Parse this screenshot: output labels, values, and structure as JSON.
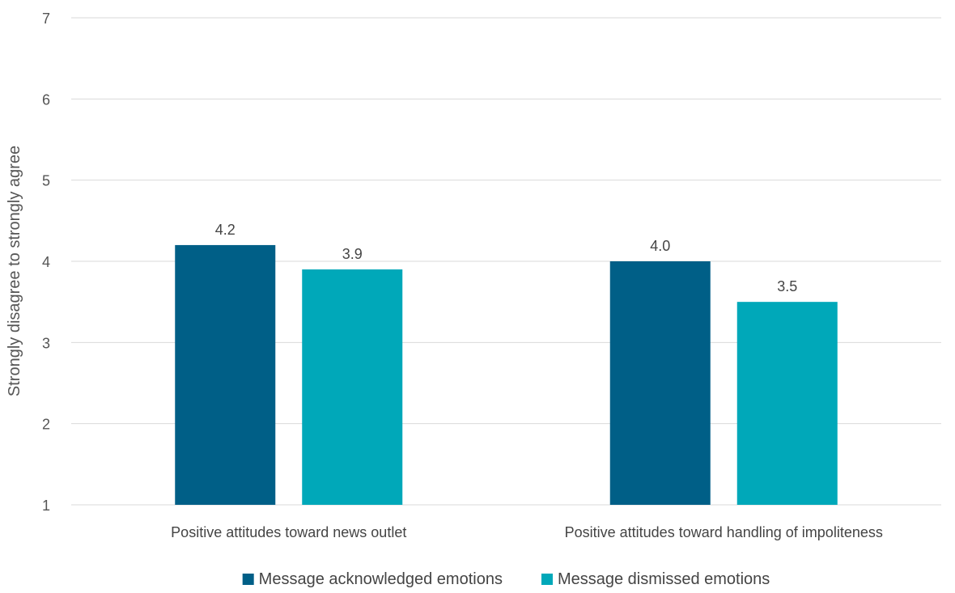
{
  "chart_data": {
    "type": "bar",
    "title": "",
    "xlabel": "",
    "ylabel": "Strongly disagree to strongly agree",
    "ylim": [
      1,
      7
    ],
    "yticks": [
      1,
      2,
      3,
      4,
      5,
      6,
      7
    ],
    "grid": true,
    "legend_position": "bottom",
    "categories": [
      "Positive attitudes toward news outlet",
      "Positive attitudes toward handling of impoliteness"
    ],
    "series": [
      {
        "name": "Message acknowledged emotions",
        "color": "#005f87",
        "values": [
          4.2,
          4.0
        ],
        "labels": [
          "4.2",
          "4.0"
        ]
      },
      {
        "name": "Message dismissed emotions",
        "color": "#00a8b9",
        "values": [
          3.9,
          3.5
        ],
        "labels": [
          "3.9",
          "3.5"
        ]
      }
    ]
  }
}
